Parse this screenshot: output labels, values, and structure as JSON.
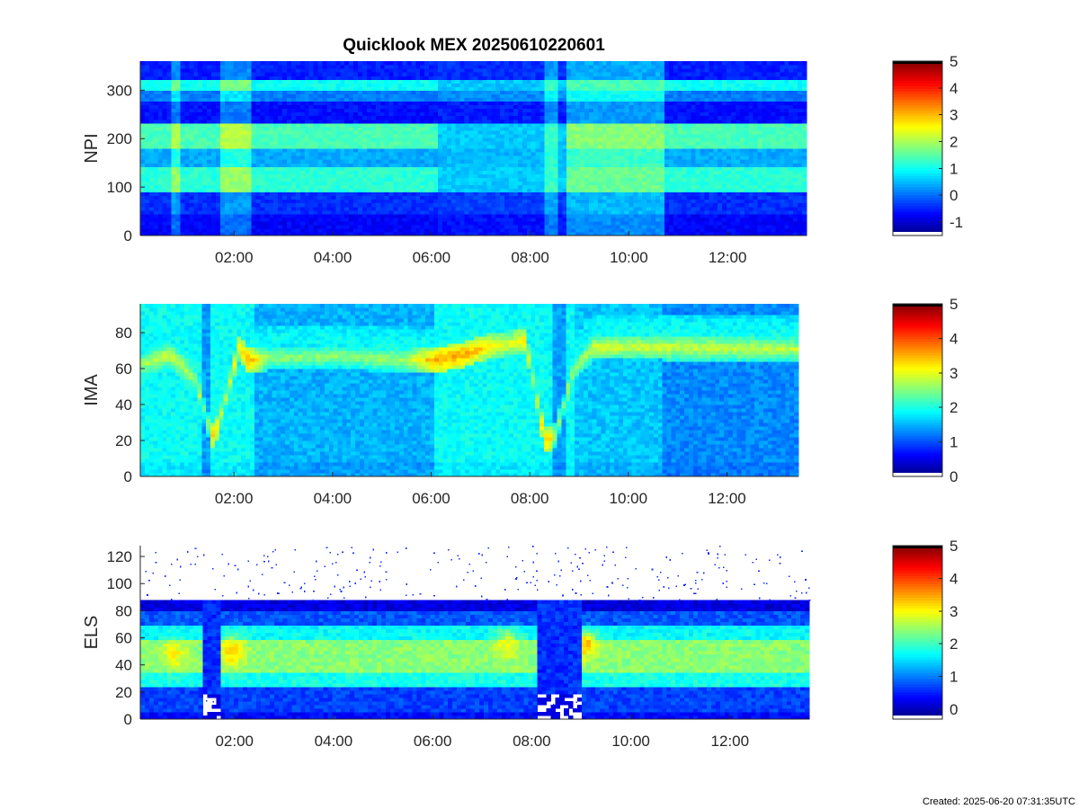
{
  "title": "Quicklook MEX 20250610220601",
  "footer": "Created: 2025-06-20 07:31:35UTC",
  "x_ticks": [
    "02:00",
    "04:00",
    "06:00",
    "08:00",
    "10:00",
    "12:00"
  ],
  "colormap": "jet",
  "chart_data": [
    {
      "type": "heatmap",
      "ylabel": "NPI",
      "x_range_hours": [
        0.1,
        13.6
      ],
      "ylim": [
        0,
        360
      ],
      "yticks": [
        0,
        100,
        200,
        300
      ],
      "colorbar": {
        "range": [
          -1.5,
          5
        ],
        "ticks": [
          -1,
          0,
          1,
          2,
          3,
          4,
          5
        ]
      },
      "bands": [
        {
          "y": [
            0,
            45
          ],
          "value": -0.7
        },
        {
          "y": [
            45,
            90
          ],
          "value": -0.4
        },
        {
          "y": [
            90,
            140
          ],
          "value": 1.2
        },
        {
          "y": [
            140,
            180
          ],
          "value": 0.4
        },
        {
          "y": [
            180,
            235
          ],
          "value": 1.4
        },
        {
          "y": [
            235,
            280
          ],
          "value": -0.6
        },
        {
          "y": [
            280,
            300
          ],
          "value": 0.1
        },
        {
          "y": [
            300,
            325
          ],
          "value": 1.0
        },
        {
          "y": [
            325,
            360
          ],
          "value": -0.5
        }
      ],
      "segments": [
        {
          "x": [
            0.1,
            6.1
          ],
          "state": "normal"
        },
        {
          "x": [
            6.1,
            8.7
          ],
          "state": "dim"
        },
        {
          "x": [
            8.7,
            10.7
          ],
          "state": "bright"
        },
        {
          "x": [
            10.7,
            13.6
          ],
          "state": "normal"
        }
      ]
    },
    {
      "type": "heatmap",
      "ylabel": "IMA",
      "x_range_hours": [
        0.1,
        13.45
      ],
      "ylim": [
        0,
        96
      ],
      "yticks": [
        0,
        20,
        40,
        60,
        80
      ],
      "colorbar": {
        "range": [
          0,
          5
        ],
        "ticks": [
          0,
          1,
          2,
          3,
          4,
          5
        ]
      },
      "background": [
        {
          "x": [
            0.1,
            2.4
          ],
          "value": 1.9
        },
        {
          "x": [
            2.4,
            6.1
          ],
          "value": 1.5
        },
        {
          "x": [
            6.1,
            8.9
          ],
          "value": 1.9
        },
        {
          "x": [
            8.9,
            10.7
          ],
          "value": 1.6
        },
        {
          "x": [
            10.7,
            13.45
          ],
          "value": 1.3
        }
      ],
      "ridge": [
        {
          "hour": 0.1,
          "y": 62,
          "value": 2.7
        },
        {
          "hour": 0.7,
          "y": 68,
          "value": 2.9
        },
        {
          "hour": 1.2,
          "y": 55,
          "value": 2.7
        },
        {
          "hour": 1.5,
          "y": 28,
          "value": 3.1
        },
        {
          "hour": 1.6,
          "y": 22,
          "value": 3.5
        },
        {
          "hour": 1.8,
          "y": 40,
          "value": 2.6
        },
        {
          "hour": 2.1,
          "y": 72,
          "value": 3.2
        },
        {
          "hour": 2.3,
          "y": 64,
          "value": 3.6
        },
        {
          "hour": 2.7,
          "y": 66,
          "value": 2.6
        },
        {
          "hour": 4.0,
          "y": 67,
          "value": 2.6
        },
        {
          "hour": 5.5,
          "y": 65,
          "value": 2.7
        },
        {
          "hour": 6.1,
          "y": 65,
          "value": 3.6
        },
        {
          "hour": 6.7,
          "y": 68,
          "value": 3.6
        },
        {
          "hour": 7.1,
          "y": 72,
          "value": 3.3
        },
        {
          "hour": 7.6,
          "y": 74,
          "value": 3.0
        },
        {
          "hour": 7.9,
          "y": 76,
          "value": 3.3
        },
        {
          "hour": 8.1,
          "y": 50,
          "value": 2.6
        },
        {
          "hour": 8.3,
          "y": 20,
          "value": 3.5
        },
        {
          "hour": 8.5,
          "y": 22,
          "value": 3.2
        },
        {
          "hour": 8.9,
          "y": 60,
          "value": 2.6
        },
        {
          "hour": 9.3,
          "y": 72,
          "value": 2.9
        },
        {
          "hour": 10.7,
          "y": 72,
          "value": 2.9
        },
        {
          "hour": 13.45,
          "y": 71,
          "value": 2.8
        }
      ]
    },
    {
      "type": "heatmap",
      "ylabel": "ELS",
      "x_range_hours": [
        0.1,
        13.6
      ],
      "ylim": [
        0,
        128
      ],
      "yticks": [
        0,
        20,
        40,
        60,
        80,
        100,
        120
      ],
      "colorbar": {
        "range": [
          -0.3,
          5
        ],
        "ticks": [
          0,
          1,
          2,
          3,
          4,
          5
        ]
      },
      "profile": [
        {
          "y": [
            0,
            5
          ],
          "value": 0.4
        },
        {
          "y": [
            5,
            25
          ],
          "value": 0.7
        },
        {
          "y": [
            25,
            35
          ],
          "value": 1.8
        },
        {
          "y": [
            35,
            60
          ],
          "value": 2.4
        },
        {
          "y": [
            60,
            70
          ],
          "value": 1.7
        },
        {
          "y": [
            70,
            80
          ],
          "value": 0.8
        },
        {
          "y": [
            80,
            88
          ],
          "value": 0.2
        },
        {
          "y": [
            88,
            128
          ],
          "value": "sparse"
        }
      ],
      "gaps": [
        {
          "x": [
            1.35,
            1.75
          ],
          "state": "dark"
        },
        {
          "x": [
            8.15,
            9.0
          ],
          "state": "dark"
        }
      ],
      "hotspots": [
        {
          "hour": 0.8,
          "y": 48,
          "value": 3.0
        },
        {
          "hour": 1.95,
          "y": 50,
          "value": 3.3
        },
        {
          "hour": 7.5,
          "y": 55,
          "value": 2.9
        },
        {
          "hour": 9.05,
          "y": 55,
          "value": 3.4
        }
      ]
    }
  ]
}
